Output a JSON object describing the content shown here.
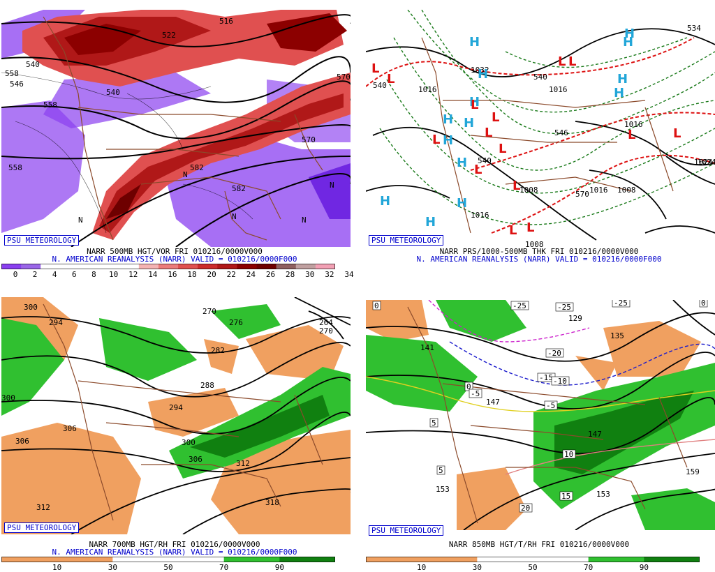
{
  "panels": [
    {
      "badge": "PSU METEOROLOGY",
      "caption1": "NARR 500MB HGT/VOR FRI 010216/0000V000",
      "caption2": "N. AMERICAN REANALYSIS (NARR) VALID = 010216/0000F000",
      "colorbar": {
        "colors": [
          "#8a3ff0",
          "#9a66e8",
          "#ffffff",
          "#ffffff",
          "#ffffff",
          "#ffffff",
          "#ffffff",
          "#f4b3b3",
          "#ec7b7b",
          "#e05050",
          "#cc2c2c",
          "#b01818",
          "#8c0000",
          "#6e0000",
          "#8f6060",
          "#c0a0a0",
          "#f2a0b4"
        ],
        "ticks": [
          "0",
          "2",
          "4",
          "6",
          "8",
          "10",
          "12",
          "14",
          "16",
          "18",
          "20",
          "22",
          "24",
          "26",
          "28",
          "30",
          "32",
          "34"
        ]
      },
      "labels": [
        "558",
        "540",
        "546",
        "516",
        "522",
        "558",
        "570",
        "540",
        "582",
        "582",
        "558",
        "N",
        "N",
        "N",
        "N",
        "570",
        "N"
      ]
    },
    {
      "badge": "PSU METEOROLOGY",
      "caption1": "NARR PRS/1000-500MB THK FRI 010216/0000V000",
      "caption2": "N. AMERICAN REANALYSIS (NARR) VALID = 010216/0000F000",
      "labels": [
        "1032",
        "1016",
        "1016",
        "1016",
        "540",
        "540",
        "546",
        "540",
        "1008",
        "1016",
        "1016",
        "1024",
        "1008",
        "1008",
        "570",
        "1024",
        "534"
      ],
      "highs": [
        "H",
        "H",
        "H",
        "H",
        "H",
        "H",
        "H",
        "H",
        "H",
        "H",
        "H",
        "H",
        "H",
        "H"
      ],
      "lows": [
        "L",
        "L",
        "L",
        "L",
        "L",
        "L",
        "L",
        "L",
        "L",
        "L",
        "L",
        "L",
        "L",
        "L",
        "L"
      ]
    },
    {
      "badge": "PSU METEOROLOGY",
      "caption1": "NARR 700MB HGT/RH FRI 010216/0000V000",
      "caption2": "N. AMERICAN REANALYSIS (NARR) VALID = 010216/0000F000",
      "colorbar": {
        "colors": [
          "#f0a060",
          "#f0a060",
          "#ffffff",
          "#ffffff",
          "#30c030",
          "#108010"
        ],
        "ticks": [
          "10",
          "30",
          "50",
          "70",
          "90"
        ]
      },
      "labels": [
        "300",
        "294",
        "270",
        "276",
        "282",
        "264",
        "270",
        "288",
        "294",
        "300",
        "306",
        "306",
        "312",
        "300",
        "306",
        "312",
        "318"
      ]
    },
    {
      "badge": "PSU METEOROLOGY",
      "caption1": "NARR 850MB HGT/T/RH FRI 010216/0000V000",
      "caption2": "",
      "colorbar": {
        "colors": [
          "#f0a060",
          "#f0a060",
          "#ffffff",
          "#ffffff",
          "#30c030",
          "#108010"
        ],
        "ticks": [
          "10",
          "30",
          "50",
          "70",
          "90"
        ]
      },
      "boxlabels": [
        "0",
        "-25",
        "-25",
        "-25",
        "-20",
        "-15",
        "-10",
        "-5",
        "0",
        "-5",
        "5",
        "5",
        "10",
        "15",
        "20",
        "0"
      ],
      "labels": [
        "141",
        "129",
        "135",
        "147",
        "153",
        "159",
        "153",
        "147"
      ]
    }
  ]
}
